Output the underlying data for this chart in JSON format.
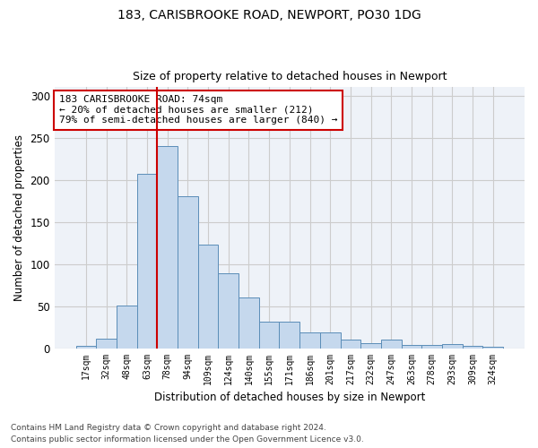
{
  "title1": "183, CARISBROOKE ROAD, NEWPORT, PO30 1DG",
  "title2": "Size of property relative to detached houses in Newport",
  "xlabel": "Distribution of detached houses by size in Newport",
  "ylabel": "Number of detached properties",
  "bar_color": "#c5d8ed",
  "bar_edge_color": "#5b8db8",
  "bar_width": 1.0,
  "categories": [
    "17sqm",
    "32sqm",
    "48sqm",
    "63sqm",
    "78sqm",
    "94sqm",
    "109sqm",
    "124sqm",
    "140sqm",
    "155sqm",
    "171sqm",
    "186sqm",
    "201sqm",
    "217sqm",
    "232sqm",
    "247sqm",
    "263sqm",
    "278sqm",
    "293sqm",
    "309sqm",
    "324sqm"
  ],
  "values": [
    3,
    11,
    51,
    207,
    240,
    181,
    123,
    89,
    60,
    31,
    31,
    19,
    19,
    10,
    6,
    10,
    4,
    4,
    5,
    3,
    2
  ],
  "vline_index": 3.5,
  "vline_color": "#cc0000",
  "annotation_text": "183 CARISBROOKE ROAD: 74sqm\n← 20% of detached houses are smaller (212)\n79% of semi-detached houses are larger (840) →",
  "annotation_box_color": "white",
  "annotation_box_edge_color": "#cc0000",
  "ylim": [
    0,
    310
  ],
  "yticks": [
    0,
    50,
    100,
    150,
    200,
    250,
    300
  ],
  "grid_color": "#cccccc",
  "bg_color": "#eef2f8",
  "footer1": "Contains HM Land Registry data © Crown copyright and database right 2024.",
  "footer2": "Contains public sector information licensed under the Open Government Licence v3.0."
}
